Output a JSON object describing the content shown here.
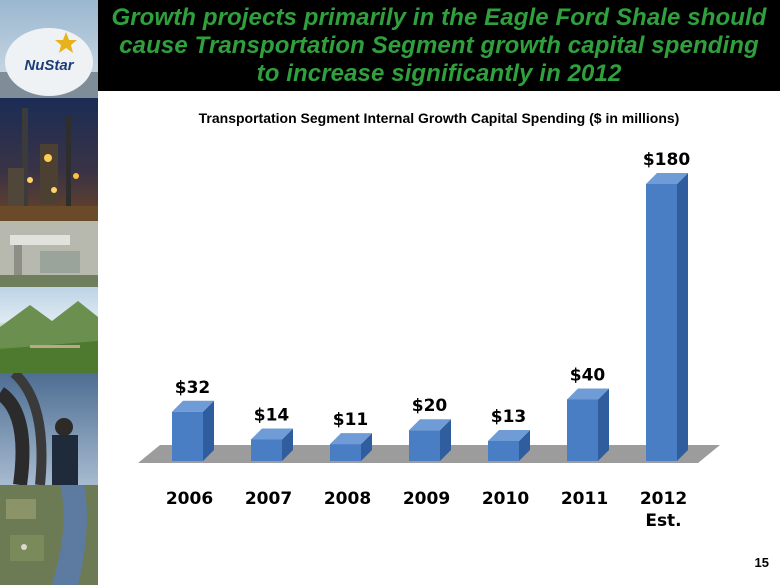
{
  "header": {
    "title": "Growth projects primarily in the Eagle Ford Shale should cause Transportation Segment growth capital spending  to increase significantly in 2012"
  },
  "sidebar": {
    "logo_text": "NuStar",
    "photos": [
      "nustar-logo-photo",
      "refinery-night-photo",
      "terminal-aerial-photo",
      "mountain-valley-photo",
      "worker-pipes-photo",
      "river-aerial-photo"
    ]
  },
  "colors": {
    "title_green": "#2fa03d",
    "bar_front": "#4a7ec4",
    "bar_side": "#2f5d9e",
    "bar_top": "#6f9bd6",
    "floor": "#9c9c9c"
  },
  "chart_data": {
    "type": "bar",
    "title": "Transportation Segment Internal Growth Capital Spending ($ in millions)",
    "categories": [
      "2006",
      "2007",
      "2008",
      "2009",
      "2010",
      "2011",
      "2012 Est."
    ],
    "values": [
      32,
      14,
      11,
      20,
      13,
      40,
      180
    ],
    "data_labels": [
      "$32",
      "$14",
      "$11",
      "$20",
      "$13",
      "$40",
      "$180"
    ],
    "ylim": [
      0,
      180
    ],
    "xlabel": "",
    "ylabel": "",
    "grid": false,
    "legend": "none",
    "style": "3d-column"
  },
  "footer": {
    "page_number": "15"
  }
}
